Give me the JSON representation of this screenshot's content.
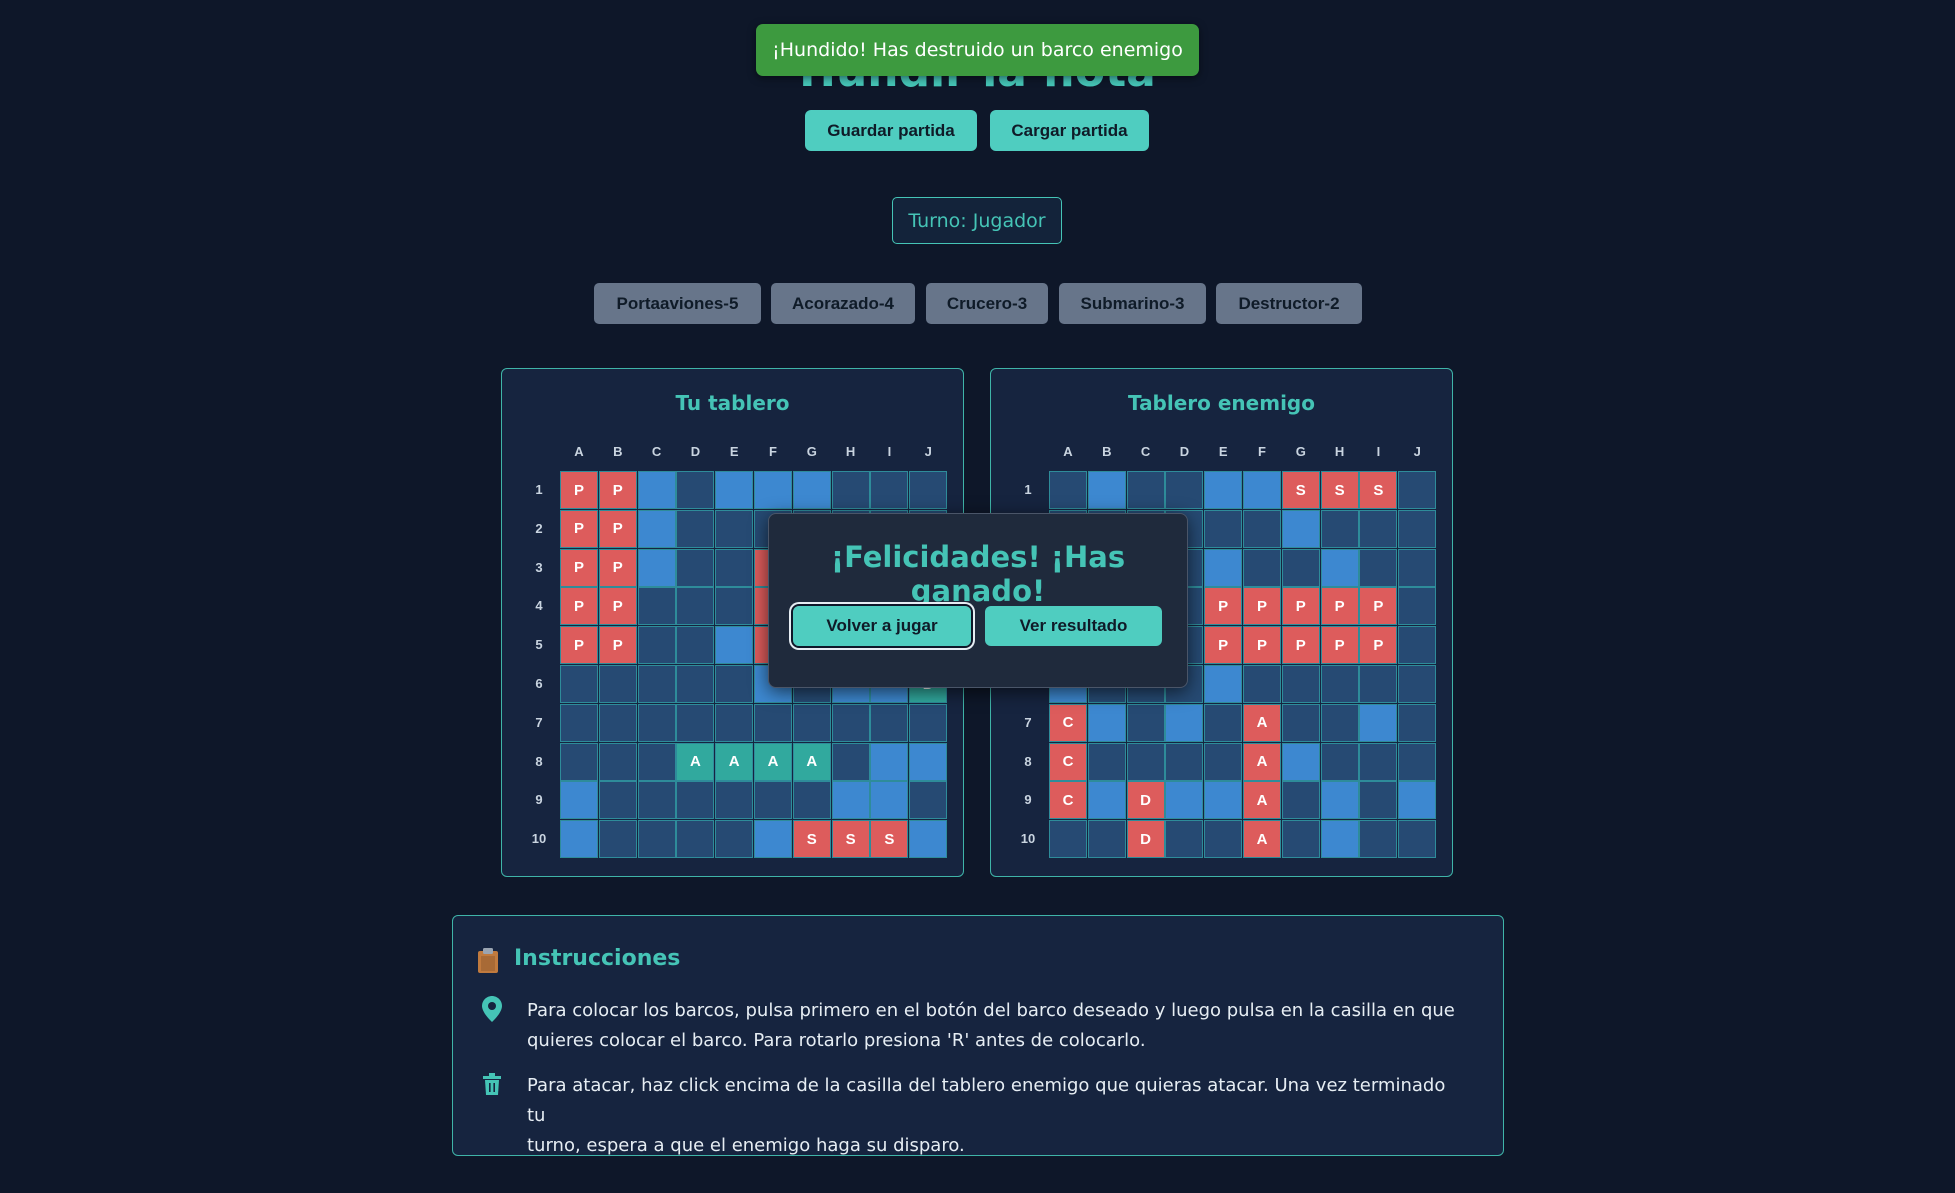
{
  "app": {
    "title": "Hundir la flota"
  },
  "toast": {
    "message": "¡Hundido! Has destruido un barco enemigo"
  },
  "toolbar": {
    "save_label": "Guardar partida",
    "load_label": "Cargar partida"
  },
  "turn": {
    "label": "Turno: Jugador"
  },
  "ships": [
    {
      "label": "Portaaviones-5"
    },
    {
      "label": "Acorazado-4"
    },
    {
      "label": "Crucero-3"
    },
    {
      "label": "Submarino-3"
    },
    {
      "label": "Destructor-2"
    }
  ],
  "columns": [
    "A",
    "B",
    "C",
    "D",
    "E",
    "F",
    "G",
    "H",
    "I",
    "J"
  ],
  "rows": [
    "1",
    "2",
    "3",
    "4",
    "5",
    "6",
    "7",
    "8",
    "9",
    "10"
  ],
  "colors": {
    "dark": "#264a73",
    "light": "#3d88d0",
    "red": "#dd5c5c",
    "green": "#31a99e",
    "accent": "#45c4b6"
  },
  "boards": {
    "player": {
      "title": "Tu tablero",
      "cells": [
        [
          "r:P",
          "r:P",
          "l",
          "d",
          "l",
          "l",
          "l",
          "d",
          "d",
          "d"
        ],
        [
          "r:P",
          "r:P",
          "l",
          "d",
          "d",
          "d",
          "d",
          "d",
          "d",
          "d"
        ],
        [
          "r:P",
          "r:P",
          "l",
          "d",
          "d",
          "r",
          "d",
          "d",
          "d",
          "d"
        ],
        [
          "r:P",
          "r:P",
          "d",
          "d",
          "d",
          "r",
          "d",
          "d",
          "d",
          "d"
        ],
        [
          "r:P",
          "r:P",
          "d",
          "d",
          "l",
          "r",
          "d",
          "d",
          "d",
          "d"
        ],
        [
          "d",
          "d",
          "d",
          "d",
          "d",
          "l",
          "d",
          "l",
          "l",
          "g:D"
        ],
        [
          "d",
          "d",
          "d",
          "d",
          "d",
          "d",
          "d",
          "d",
          "d",
          "d"
        ],
        [
          "d",
          "d",
          "d",
          "g:A",
          "g:A",
          "g:A",
          "g:A",
          "d",
          "l",
          "l"
        ],
        [
          "l",
          "d",
          "d",
          "d",
          "d",
          "d",
          "d",
          "l",
          "l",
          "d"
        ],
        [
          "l",
          "d",
          "d",
          "d",
          "d",
          "l",
          "r:S",
          "r:S",
          "r:S",
          "l"
        ]
      ]
    },
    "enemy": {
      "title": "Tablero enemigo",
      "cells": [
        [
          "d",
          "l",
          "d",
          "d",
          "l",
          "l",
          "r:S",
          "r:S",
          "r:S",
          "d"
        ],
        [
          "d",
          "d",
          "d",
          "d",
          "d",
          "d",
          "l",
          "d",
          "d",
          "d"
        ],
        [
          "d",
          "d",
          "d",
          "d",
          "l",
          "d",
          "d",
          "l",
          "d",
          "d"
        ],
        [
          "d",
          "d",
          "d",
          "d",
          "r:P",
          "r:P",
          "r:P",
          "r:P",
          "r:P",
          "d"
        ],
        [
          "d",
          "d",
          "d",
          "d",
          "r:P",
          "r:P",
          "r:P",
          "r:P",
          "r:P",
          "d"
        ],
        [
          "l",
          "d",
          "d",
          "d",
          "l",
          "d",
          "d",
          "d",
          "d",
          "d"
        ],
        [
          "r:C",
          "l",
          "d",
          "l",
          "d",
          "r:A",
          "d",
          "d",
          "l",
          "d"
        ],
        [
          "r:C",
          "d",
          "d",
          "d",
          "d",
          "r:A",
          "l",
          "d",
          "d",
          "d"
        ],
        [
          "r:C",
          "l",
          "r:D",
          "l",
          "l",
          "r:A",
          "d",
          "l",
          "d",
          "l"
        ],
        [
          "d",
          "d",
          "r:D",
          "d",
          "d",
          "r:A",
          "d",
          "l",
          "d",
          "d"
        ]
      ]
    }
  },
  "modal": {
    "title": "¡Felicidades! ¡Has ganado!",
    "play_again_label": "Volver a jugar",
    "results_label": "Ver resultado"
  },
  "instructions": {
    "title": "Instrucciones",
    "icons": [
      "clipboard-icon",
      "location-pin-icon",
      "trash-icon"
    ],
    "items": [
      {
        "line1": "Para colocar los barcos, pulsa primero en el botón del barco deseado y luego pulsa en la casilla en que",
        "line2": "quieres colocar el barco. Para rotarlo presiona 'R' antes de colocarlo."
      },
      {
        "line1": "Para atacar, haz click encima de la casilla del tablero enemigo que quieras atacar. Una vez terminado tu",
        "line2": "turno, espera a que el enemigo haga su disparo."
      }
    ]
  }
}
